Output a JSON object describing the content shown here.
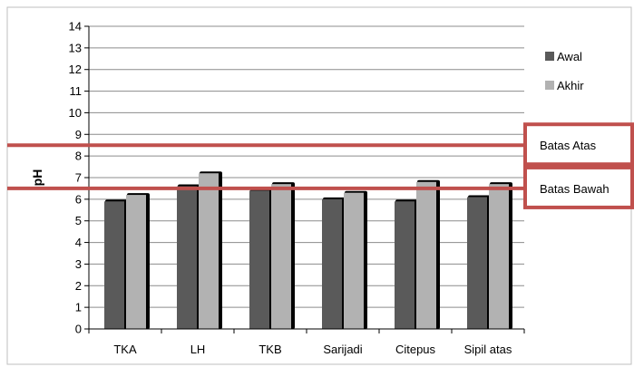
{
  "chart_data": {
    "type": "bar",
    "title": "",
    "xlabel": "",
    "ylabel": "pH",
    "ylim": [
      0,
      14
    ],
    "yticks": [
      "0",
      "1",
      "2",
      "3",
      "4",
      "5",
      "6",
      "7",
      "8",
      "9",
      "10",
      "11",
      "12",
      "13",
      "14"
    ],
    "grid": true,
    "legend_position": "right",
    "categories": [
      "TKA",
      "LH",
      "TKB",
      "Sarijadi",
      "Citepus",
      "Sipil atas"
    ],
    "series": [
      {
        "name": "Awal",
        "color": "#5a5a5a",
        "values": [
          5.9,
          6.6,
          6.4,
          6.0,
          5.9,
          6.1
        ]
      },
      {
        "name": "Akhir",
        "color": "#b2b2b2",
        "values": [
          6.2,
          7.2,
          6.7,
          6.3,
          6.8,
          6.7
        ]
      }
    ],
    "reference_lines": [
      {
        "label": "Batas Atas",
        "value": 8.5,
        "color": "#c0504d"
      },
      {
        "label": "Batas Bawah",
        "value": 6.5,
        "color": "#c0504d"
      }
    ]
  }
}
